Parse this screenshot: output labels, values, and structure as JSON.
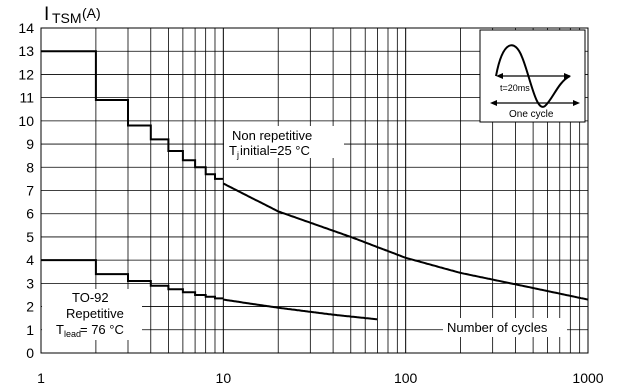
{
  "chart_data": {
    "type": "line",
    "x_scale": "log",
    "xlim": [
      1,
      1000
    ],
    "ylim": [
      0,
      14
    ],
    "x_ticks": [
      1,
      10,
      100,
      1000
    ],
    "x_tick_labels": [
      "1",
      "10",
      "100",
      "1000"
    ],
    "y_ticks": [
      0,
      1,
      2,
      3,
      4,
      5,
      6,
      7,
      8,
      9,
      10,
      11,
      12,
      13,
      14
    ],
    "y_tick_labels": [
      "0",
      "1",
      "2",
      "3",
      "4",
      "5",
      "6",
      "7",
      "8",
      "9",
      "10",
      "11",
      "12",
      "13",
      "14"
    ],
    "grid": true,
    "ylabel": {
      "main": "I",
      "sub": "TSM",
      "unit": "(A)"
    },
    "xlabel": "Number of cycles",
    "series": [
      {
        "name": "Non repetitive",
        "step_points": [
          [
            1,
            13
          ],
          [
            2,
            13
          ],
          [
            2,
            10.9
          ],
          [
            3,
            10.9
          ],
          [
            3,
            9.8
          ],
          [
            4,
            9.8
          ],
          [
            4,
            9.2
          ],
          [
            5,
            9.2
          ],
          [
            5,
            8.7
          ],
          [
            6,
            8.7
          ],
          [
            6,
            8.3
          ],
          [
            7,
            8.3
          ],
          [
            7,
            8.0
          ],
          [
            8,
            8.0
          ],
          [
            8,
            7.7
          ],
          [
            9,
            7.7
          ],
          [
            9,
            7.5
          ],
          [
            10,
            7.5
          ]
        ],
        "curve_points": [
          [
            10,
            7.3
          ],
          [
            20,
            6.1
          ],
          [
            50,
            5.0
          ],
          [
            100,
            4.1
          ],
          [
            200,
            3.45
          ],
          [
            500,
            2.8
          ],
          [
            1000,
            2.3
          ]
        ]
      },
      {
        "name": "Repetitive",
        "step_points": [
          [
            1,
            4
          ],
          [
            2,
            4
          ],
          [
            2,
            3.4
          ],
          [
            3,
            3.4
          ],
          [
            3,
            3.1
          ],
          [
            4,
            3.1
          ],
          [
            4,
            2.9
          ],
          [
            5,
            2.9
          ],
          [
            5,
            2.75
          ],
          [
            6,
            2.75
          ],
          [
            6,
            2.62
          ],
          [
            7,
            2.62
          ],
          [
            7,
            2.5
          ],
          [
            8,
            2.5
          ],
          [
            8,
            2.42
          ],
          [
            9,
            2.42
          ],
          [
            9,
            2.35
          ],
          [
            10,
            2.35
          ]
        ],
        "curve_points": [
          [
            10,
            2.3
          ],
          [
            20,
            1.95
          ],
          [
            40,
            1.65
          ],
          [
            70,
            1.45
          ]
        ]
      }
    ],
    "annotations": {
      "nonrep_line1": "Non repetitive",
      "nonrep_line2_main": "T",
      "nonrep_line2_sub": "j",
      "nonrep_line2_rest": " initial=25 °C",
      "rep_line1": "TO-92",
      "rep_line2": "Repetitive",
      "rep_line3_main": "T",
      "rep_line3_sub": "lead",
      "rep_line3_rest": " = 76 °C",
      "inset_period": "t=20ms",
      "inset_cycle": "One cycle"
    }
  }
}
